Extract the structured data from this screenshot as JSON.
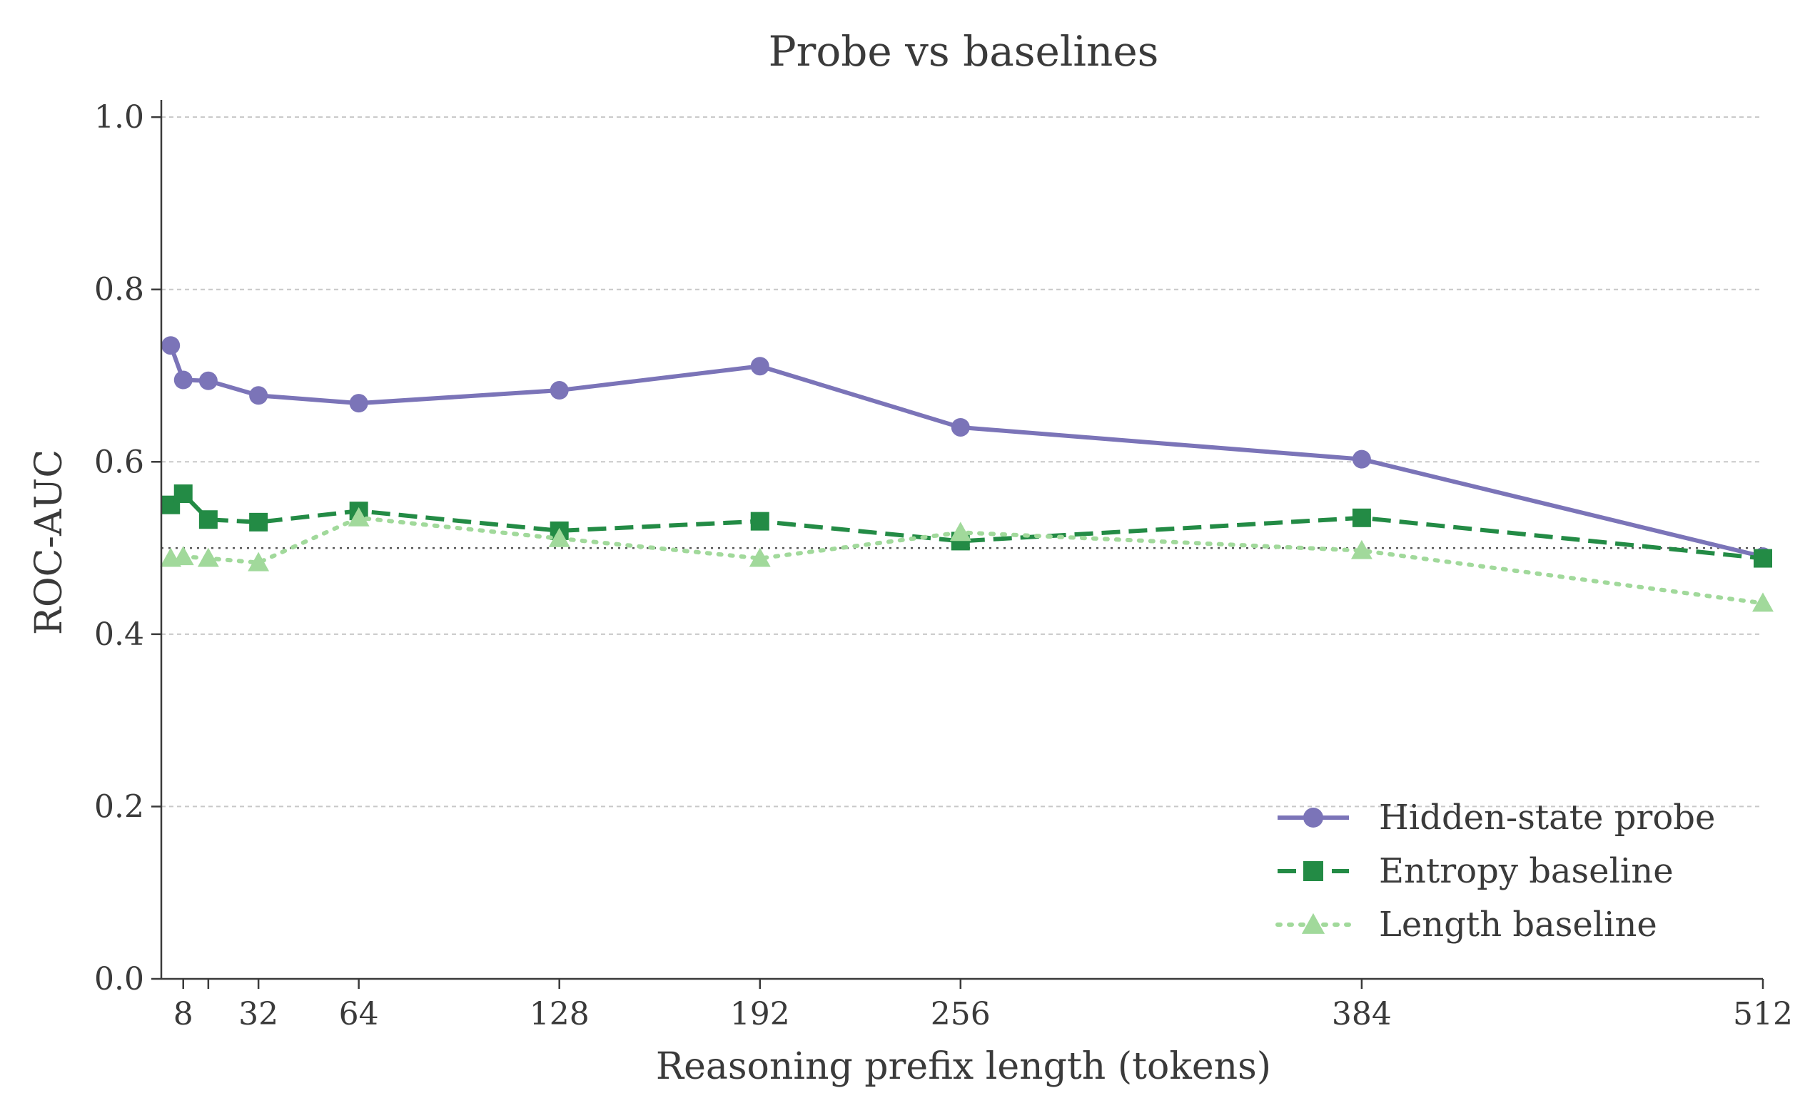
{
  "chart_data": {
    "type": "line",
    "title": "Probe vs baselines",
    "xlabel": "Reasoning prefix length (tokens)",
    "ylabel": "ROC-AUC",
    "xlim": [
      1,
      512
    ],
    "ylim": [
      0.0,
      1.02
    ],
    "x_ticks": [
      8,
      16,
      32,
      64,
      128,
      192,
      256,
      384,
      512
    ],
    "x_tick_labels": [
      "8",
      "",
      "32",
      "64",
      "128",
      "192",
      "256",
      "384",
      "512"
    ],
    "y_ticks": [
      0.0,
      0.2,
      0.4,
      0.6,
      0.8,
      1.0
    ],
    "y_tick_labels": [
      "0.0",
      "0.2",
      "0.4",
      "0.6",
      "0.8",
      "1.0"
    ],
    "grid": "y-dashed",
    "legend_position": "lower-right",
    "reference_line": {
      "y": 0.5,
      "style": "dotted",
      "color": "#555555"
    },
    "x": [
      4,
      8,
      16,
      32,
      64,
      128,
      192,
      256,
      384,
      512
    ],
    "series": [
      {
        "name": "Hidden-state probe",
        "color": "#7b74b8",
        "line_style": "solid",
        "marker": "circle",
        "values": [
          0.735,
          0.695,
          0.694,
          0.677,
          0.668,
          0.683,
          0.711,
          0.64,
          0.603,
          0.49
        ]
      },
      {
        "name": "Entropy baseline",
        "color": "#238b45",
        "line_style": "dashed",
        "marker": "square",
        "values": [
          0.55,
          0.563,
          0.533,
          0.53,
          0.543,
          0.52,
          0.531,
          0.508,
          0.535,
          0.488
        ]
      },
      {
        "name": "Length baseline",
        "color": "#a1d99b",
        "line_style": "dotted",
        "marker": "triangle",
        "values": [
          0.488,
          0.49,
          0.488,
          0.483,
          0.535,
          0.511,
          0.488,
          0.518,
          0.497,
          0.436
        ]
      }
    ]
  }
}
